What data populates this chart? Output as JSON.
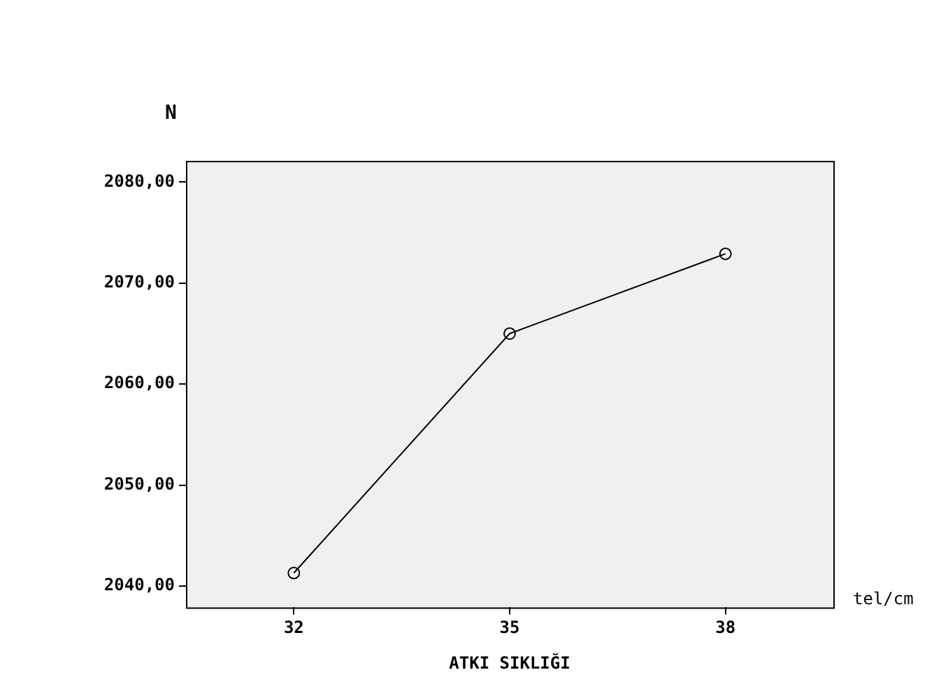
{
  "chart_data": {
    "type": "line",
    "xlabel": "ATKI SIKLIĞI",
    "ylabel": "N",
    "annotations": [
      "tel/cm"
    ],
    "categories": [
      "32",
      "35",
      "38"
    ],
    "series": [
      {
        "color": "#000000",
        "values": [
          2041.3,
          2065.0,
          2072.9
        ]
      }
    ],
    "ylim": [
      2037.9,
      2082.1
    ],
    "yticks": [
      {
        "value": 2040,
        "label": "2040,00"
      },
      {
        "value": 2050,
        "label": "2050,00"
      },
      {
        "value": 2060,
        "label": "2060,00"
      },
      {
        "value": 2070,
        "label": "2070,00"
      },
      {
        "value": 2080,
        "label": "2080,00"
      }
    ],
    "grid": false,
    "legend": false,
    "marker": "circle",
    "line_style": "solid"
  }
}
